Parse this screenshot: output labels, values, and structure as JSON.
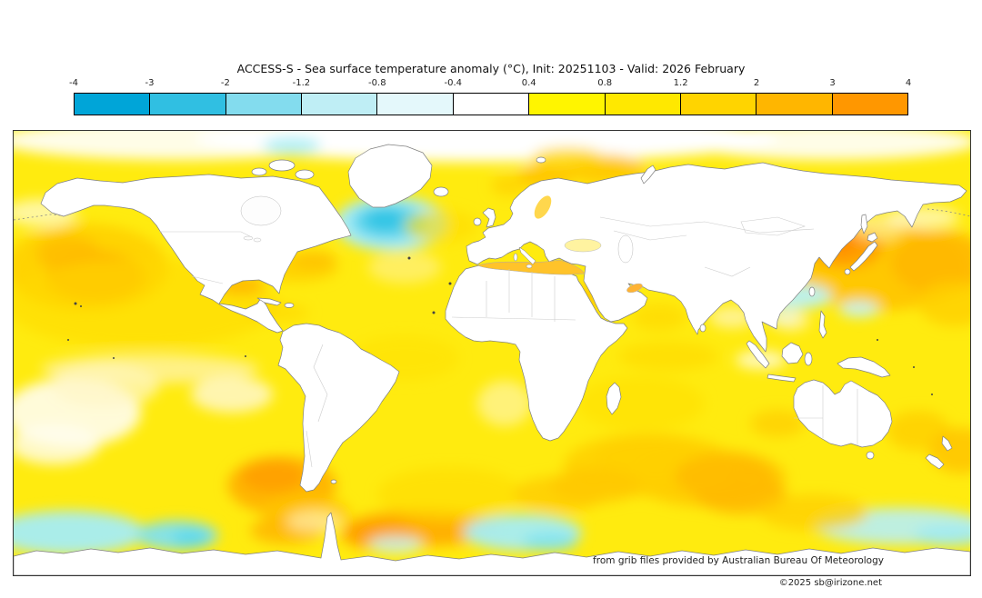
{
  "header": {
    "title": "ACCESS-S - Sea surface temperature anomaly (°C), Init: 20251103 - Valid: 2026 February"
  },
  "colorbar": {
    "ticks": [
      "-4",
      "-3",
      "-2",
      "-1.2",
      "-0.8",
      "-0.4",
      "0.4",
      "0.8",
      "1.2",
      "2",
      "3",
      "4"
    ],
    "segment_colors": [
      "#00a5d8",
      "#30bfe2",
      "#83dcee",
      "#bfeef5",
      "#e4f8fb",
      "#ffffff",
      "#fff500",
      "#ffe800",
      "#ffd400",
      "#ffb600",
      "#ff9700"
    ]
  },
  "footer": {
    "credit": "from grib files provided by Australian Bureau Of Meteorology",
    "copyright": "©2025 sb@irizone.net"
  },
  "chart_data": {
    "type": "heatmap",
    "title": "ACCESS-S - Sea surface temperature anomaly (°C), Init: 20251103 - Valid: 2026 February",
    "model": "ACCESS-S",
    "variable": "Sea surface temperature anomaly",
    "units": "°C",
    "init": "20251103",
    "valid": "2026 February",
    "projection": "equirectangular world map",
    "map_extent": {
      "lon": [
        -180,
        180
      ],
      "lat": [
        -90,
        90
      ]
    },
    "grid": false,
    "legend_position": "top",
    "colorbar": {
      "range": [
        -4,
        4
      ],
      "ticks": [
        -4,
        -3,
        -2,
        -1.2,
        -0.8,
        -0.4,
        0.4,
        0.8,
        1.2,
        2,
        3,
        4
      ],
      "colors": [
        "#00a5d8",
        "#30bfe2",
        "#83dcee",
        "#bfeef5",
        "#e4f8fb",
        "#ffffff",
        "#fff500",
        "#ffe800",
        "#ffd400",
        "#ffb600",
        "#ff9700"
      ]
    },
    "regional_anomalies_estimated": [
      {
        "region": "Northwest Pacific near Japan",
        "anomaly_c": 2.5
      },
      {
        "region": "Central and Northeast North Pacific",
        "anomaly_c": 1.5
      },
      {
        "region": "Subpolar North Atlantic cold blob south of Greenland",
        "anomaly_c": -1.5
      },
      {
        "region": "Barents / Kara Seas",
        "anomaly_c": 1.2
      },
      {
        "region": "Mediterranean Sea",
        "anomaly_c": 1.5
      },
      {
        "region": "Gulf of Mexico / western subtropical North Atlantic",
        "anomaly_c": 1.2
      },
      {
        "region": "Equatorial and southeast Pacific (neutral band)",
        "anomaly_c": 0.2
      },
      {
        "region": "Southwest Atlantic off Argentina",
        "anomaly_c": 1.5
      },
      {
        "region": "Southern mid-latitude Atlantic band",
        "anomaly_c": 1.8
      },
      {
        "region": "South Indian Ocean 40-50S band",
        "anomaly_c": 1.2
      },
      {
        "region": "South Pacific subtropics and Tasman Sea",
        "anomaly_c": 1.0
      },
      {
        "region": "Southern Ocean patches near Antarctica",
        "anomaly_c": -1.0
      },
      {
        "region": "Northwest Pacific marginal seas (Okhotsk/Kuroshio edge)",
        "anomaly_c": -0.6
      },
      {
        "region": "Most remaining global oceans",
        "anomaly_c": 0.6
      }
    ]
  }
}
